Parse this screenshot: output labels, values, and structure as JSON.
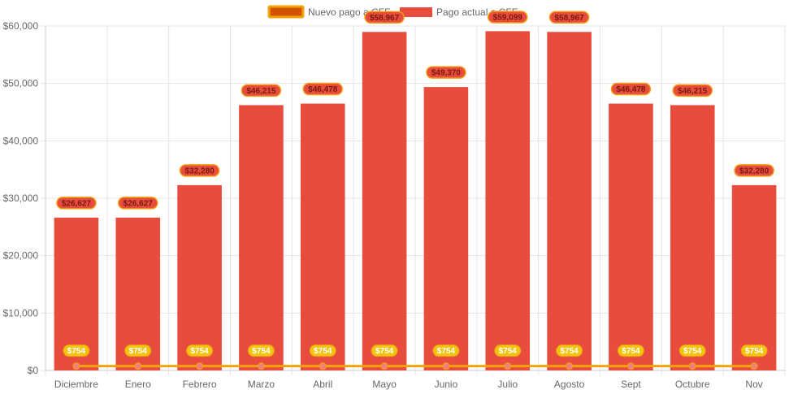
{
  "chart_data": {
    "type": "bar",
    "categories": [
      "Diciembre",
      "Enero",
      "Febrero",
      "Marzo",
      "Abril",
      "Mayo",
      "Junio",
      "Julio",
      "Agosto",
      "Sept",
      "Octubre",
      "Nov"
    ],
    "series": [
      {
        "name": "Nuevo pago a CFE",
        "type": "line",
        "color": "#f5a30a",
        "point_color": "#f08080",
        "values": [
          754,
          754,
          754,
          754,
          754,
          754,
          754,
          754,
          754,
          754,
          754,
          754
        ],
        "labels": [
          "$754",
          "$754",
          "$754",
          "$754",
          "$754",
          "$754",
          "$754",
          "$754",
          "$754",
          "$754",
          "$754",
          "$754"
        ]
      },
      {
        "name": "Pago actual a CFE",
        "type": "bar",
        "color": "#e74c3c",
        "values": [
          26627,
          26627,
          32280,
          46215,
          46478,
          58967,
          49370,
          59099,
          58967,
          46478,
          46215,
          32280
        ],
        "labels": [
          "$26,627",
          "$26,627",
          "$32,280",
          "$46,215",
          "$46,478",
          "$58,967",
          "$49,370",
          "$59,099",
          "$58,967",
          "$46,478",
          "$46,215",
          "$32,280"
        ]
      }
    ],
    "y_ticks": [
      0,
      10000,
      20000,
      30000,
      40000,
      50000,
      60000
    ],
    "y_tick_labels": [
      "$0",
      "$10,000",
      "$20,000",
      "$30,000",
      "$40,000",
      "$50,000",
      "$60,000"
    ],
    "ylim": [
      0,
      60000
    ],
    "grid": true,
    "legend_position": "top-center",
    "title": "",
    "xlabel": "",
    "ylabel": ""
  }
}
